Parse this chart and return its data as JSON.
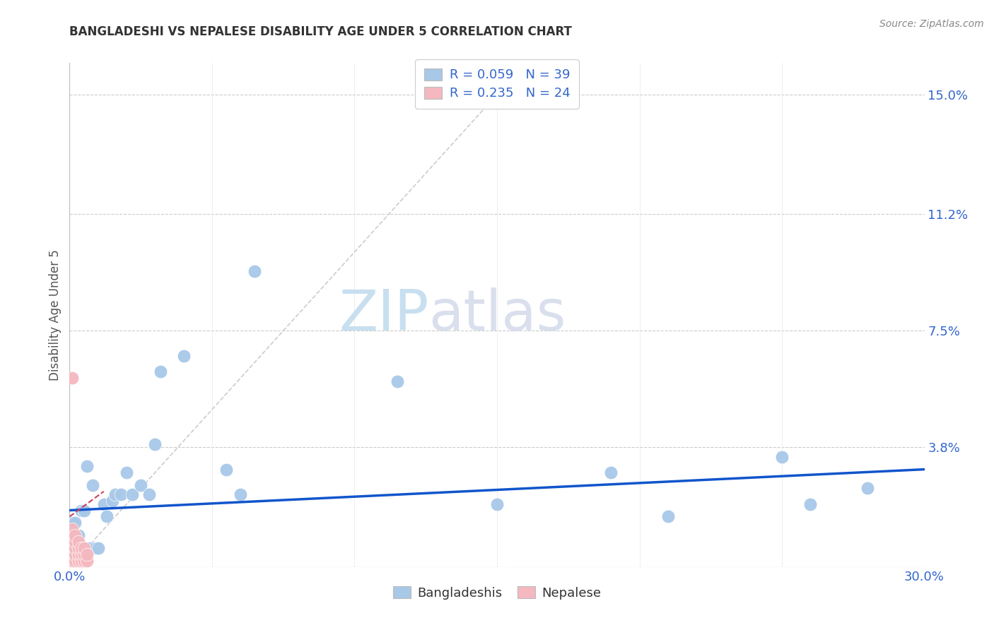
{
  "title": "BANGLADESHI VS NEPALESE DISABILITY AGE UNDER 5 CORRELATION CHART",
  "source": "Source: ZipAtlas.com",
  "ylabel": "Disability Age Under 5",
  "x_min": 0.0,
  "x_max": 0.3,
  "y_min": 0.0,
  "y_max": 0.16,
  "x_tick_labels": [
    "0.0%",
    "30.0%"
  ],
  "y_ticks": [
    0.0,
    0.038,
    0.075,
    0.112,
    0.15
  ],
  "y_tick_labels": [
    "",
    "3.8%",
    "7.5%",
    "11.2%",
    "15.0%"
  ],
  "background_color": "#ffffff",
  "grid_color": "#cccccc",
  "bangladeshi_color": "#a8c8e8",
  "nepalese_color": "#f5b8c0",
  "trend_bangladeshi_color": "#1155cc",
  "trend_nepalese_color": "#cc4455",
  "diagonal_color": "#cccccc",
  "watermark_color": "#c8dff0",
  "label_color": "#3366cc",
  "title_color": "#333333",
  "bangladeshi_x": [
    0.001,
    0.001,
    0.001,
    0.002,
    0.002,
    0.002,
    0.003,
    0.003,
    0.004,
    0.004,
    0.005,
    0.005,
    0.006,
    0.007,
    0.008,
    0.009,
    0.01,
    0.012,
    0.013,
    0.015,
    0.016,
    0.018,
    0.02,
    0.022,
    0.025,
    0.028,
    0.03,
    0.032,
    0.04,
    0.055,
    0.06,
    0.065,
    0.115,
    0.15,
    0.19,
    0.21,
    0.25,
    0.26,
    0.28
  ],
  "bangladeshi_y": [
    0.006,
    0.01,
    0.014,
    0.006,
    0.01,
    0.014,
    0.006,
    0.01,
    0.006,
    0.018,
    0.006,
    0.018,
    0.032,
    0.006,
    0.026,
    0.006,
    0.006,
    0.02,
    0.016,
    0.021,
    0.023,
    0.023,
    0.03,
    0.023,
    0.026,
    0.023,
    0.039,
    0.062,
    0.067,
    0.031,
    0.023,
    0.094,
    0.059,
    0.02,
    0.03,
    0.016,
    0.035,
    0.02,
    0.025
  ],
  "nepalese_x": [
    0.001,
    0.001,
    0.001,
    0.001,
    0.001,
    0.001,
    0.002,
    0.002,
    0.002,
    0.002,
    0.002,
    0.003,
    0.003,
    0.003,
    0.003,
    0.004,
    0.004,
    0.004,
    0.005,
    0.005,
    0.005,
    0.006,
    0.006,
    0.001
  ],
  "nepalese_y": [
    0.002,
    0.004,
    0.006,
    0.008,
    0.01,
    0.012,
    0.002,
    0.004,
    0.006,
    0.008,
    0.01,
    0.002,
    0.004,
    0.006,
    0.008,
    0.002,
    0.004,
    0.006,
    0.002,
    0.004,
    0.006,
    0.002,
    0.004,
    0.06
  ],
  "bang_trend_x0": 0.0,
  "bang_trend_x1": 0.3,
  "bang_trend_y0": 0.018,
  "bang_trend_y1": 0.031,
  "nep_trend_x0": 0.0,
  "nep_trend_x1": 0.012,
  "nep_trend_y0": 0.016,
  "nep_trend_y1": 0.024
}
